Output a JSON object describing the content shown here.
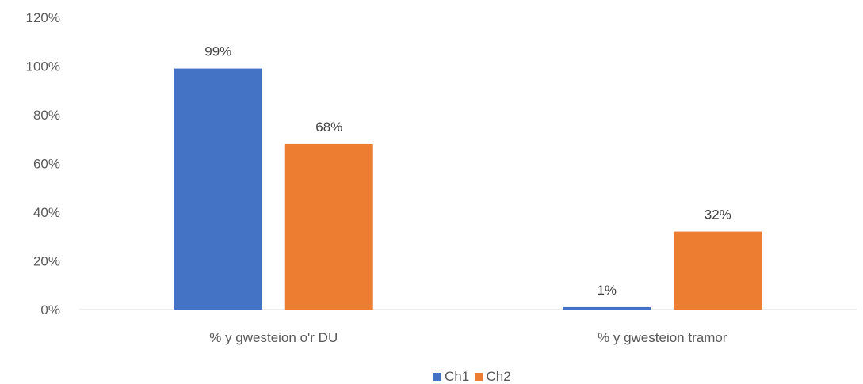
{
  "chart_data": {
    "type": "bar",
    "title": "",
    "xlabel": "",
    "ylabel": "",
    "categories": [
      "% y gwesteion o'r DU",
      "% y gwesteion tramor"
    ],
    "series": [
      {
        "name": "Ch1",
        "color": "#4472C4",
        "values": [
          99,
          1
        ],
        "labels": [
          "99%",
          "1%"
        ]
      },
      {
        "name": "Ch2",
        "color": "#ED7D31",
        "values": [
          68,
          32
        ],
        "labels": [
          "68%",
          "32%"
        ]
      }
    ],
    "ylim": [
      0,
      120
    ],
    "yticks": [
      {
        "value": 0,
        "label": "0%"
      },
      {
        "value": 20,
        "label": "20%"
      },
      {
        "value": 40,
        "label": "40%"
      },
      {
        "value": 60,
        "label": "60%"
      },
      {
        "value": 80,
        "label": "80%"
      },
      {
        "value": 100,
        "label": "100%"
      },
      {
        "value": 120,
        "label": "120%"
      }
    ],
    "grid": false,
    "legend_position": "bottom",
    "axis_color": "#D9D9D9"
  }
}
